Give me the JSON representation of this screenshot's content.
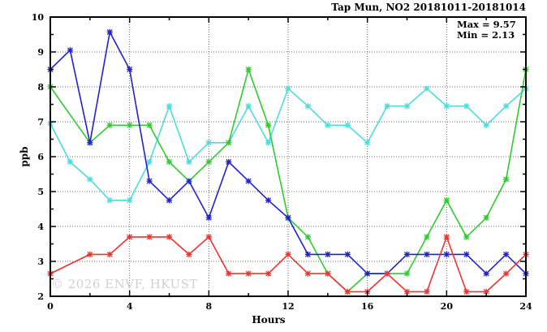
{
  "legend": {
    "max_label": "Max = 9.57",
    "min_label": "Min = 2.13"
  },
  "watermark": "© 2026 ENVF, HKUST",
  "chart_data": {
    "type": "line",
    "title": "Tap Mun, NO2 20181011-20181014",
    "xlabel": "Hours",
    "ylabel": "ppb",
    "xlim": [
      0,
      24
    ],
    "ylim": [
      2,
      10
    ],
    "x_major_ticks": [
      0,
      4,
      8,
      12,
      16,
      20,
      24
    ],
    "x_minor_step": 2,
    "y_major_ticks": [
      2,
      3,
      4,
      5,
      6,
      7,
      8,
      9,
      10
    ],
    "y_minor_step": 0.5,
    "grid": true,
    "legend_position": "top-right-inside",
    "stats": {
      "max": 9.57,
      "min": 2.13
    },
    "x": [
      0,
      1,
      2,
      3,
      4,
      5,
      6,
      7,
      8,
      9,
      10,
      11,
      12,
      13,
      14,
      15,
      16,
      17,
      18,
      19,
      20,
      21,
      22,
      23,
      24
    ],
    "series": [
      {
        "name": "cyan-line",
        "color": "#4ddbdb",
        "values": [
          6.95,
          5.85,
          5.35,
          4.75,
          4.75,
          5.85,
          7.45,
          5.85,
          6.4,
          6.4,
          7.45,
          6.4,
          7.95,
          7.45,
          6.9,
          6.9,
          6.4,
          7.45,
          7.45,
          7.95,
          7.45,
          7.45,
          6.9,
          7.45,
          7.95
        ]
      },
      {
        "name": "green-line",
        "color": "#2ecc2e",
        "values": [
          8.0,
          null,
          6.4,
          6.9,
          6.9,
          6.9,
          5.85,
          5.3,
          5.85,
          6.4,
          8.5,
          6.9,
          4.25,
          3.7,
          2.65,
          2.13,
          2.65,
          2.65,
          2.65,
          3.7,
          4.75,
          3.7,
          4.25,
          5.35,
          8.5
        ]
      },
      {
        "name": "blue-line",
        "color": "#2222cc",
        "values": [
          8.5,
          9.05,
          6.4,
          9.57,
          8.5,
          5.3,
          4.75,
          5.3,
          4.25,
          5.85,
          5.3,
          4.75,
          4.25,
          3.2,
          3.2,
          3.2,
          2.65,
          2.65,
          3.2,
          3.2,
          3.2,
          3.2,
          2.65,
          3.2,
          2.65
        ]
      },
      {
        "name": "red-line",
        "color": "#ee3333",
        "values": [
          2.65,
          null,
          3.2,
          3.2,
          3.7,
          3.7,
          3.7,
          3.2,
          3.7,
          2.65,
          2.65,
          2.65,
          3.2,
          2.65,
          2.65,
          2.13,
          2.13,
          2.65,
          2.13,
          2.13,
          3.7,
          2.13,
          2.13,
          2.65,
          3.2
        ]
      }
    ]
  }
}
